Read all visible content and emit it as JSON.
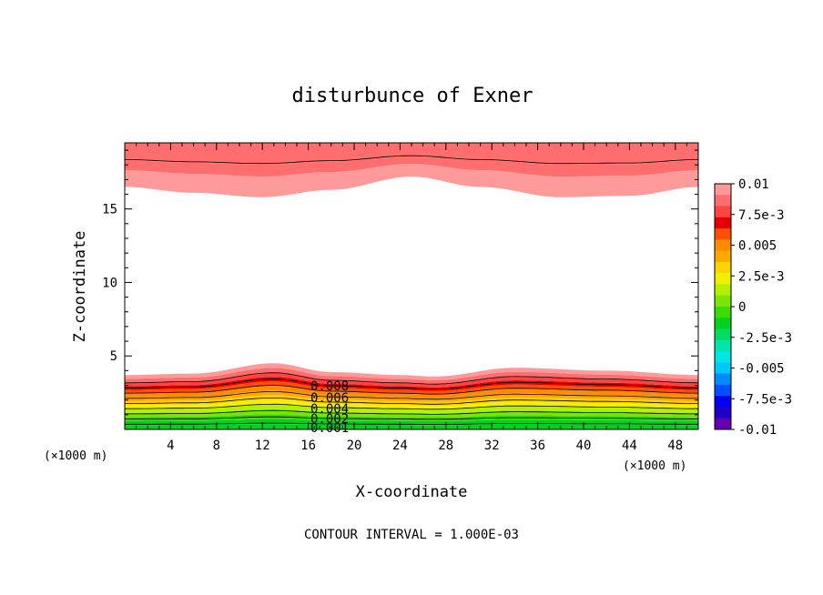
{
  "chart_data": {
    "type": "contour",
    "title": "disturbunce of Exner",
    "xlabel": "X-coordinate",
    "ylabel": "Z-coordinate",
    "x_unit": "(×1000 m)",
    "z_unit": "(×1000 m)",
    "footer": "CONTOUR INTERVAL = 1.000E-03",
    "xlim": [
      0,
      50
    ],
    "ylim": [
      0,
      19.5
    ],
    "x_ticks": [
      4,
      8,
      12,
      16,
      20,
      24,
      28,
      32,
      36,
      40,
      44,
      48
    ],
    "y_ticks": [
      5,
      10,
      15
    ],
    "contour_interval": 0.001,
    "contour_labels": [
      "0.008",
      "0.006",
      "0.004",
      "0.002",
      "0.001"
    ],
    "colorbar": {
      "labels": [
        "0.01",
        "7.5e-3",
        "0.005",
        "2.5e-3",
        "0",
        "-2.5e-3",
        "-0.005",
        "-7.5e-3",
        "-0.01"
      ],
      "colors_top_to_bottom": [
        "#ff9a9a",
        "#ff6e6e",
        "#ff4444",
        "#e80000",
        "#ff5000",
        "#ff8c00",
        "#ffaa00",
        "#ffd200",
        "#f0f000",
        "#b4f000",
        "#78e600",
        "#3cdc00",
        "#00d21e",
        "#00dc64",
        "#00e6aa",
        "#00e6e6",
        "#00c8ff",
        "#008cff",
        "#0050ff",
        "#0000f0",
        "#1e00c8",
        "#6400b4"
      ]
    },
    "series": [
      {
        "name": "upper white-region boundary",
        "x": [
          0,
          6,
          12,
          18,
          25,
          31,
          38,
          44,
          50
        ],
        "z": [
          16.5,
          16.1,
          15.8,
          16.3,
          17.2,
          16.5,
          15.8,
          15.9,
          16.5
        ]
      },
      {
        "name": "lower white-region boundary",
        "x": [
          0,
          6,
          13,
          18,
          24,
          27,
          34,
          42,
          50
        ],
        "z": [
          3.7,
          3.8,
          4.5,
          3.9,
          3.7,
          3.6,
          4.2,
          4.0,
          3.7
        ]
      }
    ]
  }
}
